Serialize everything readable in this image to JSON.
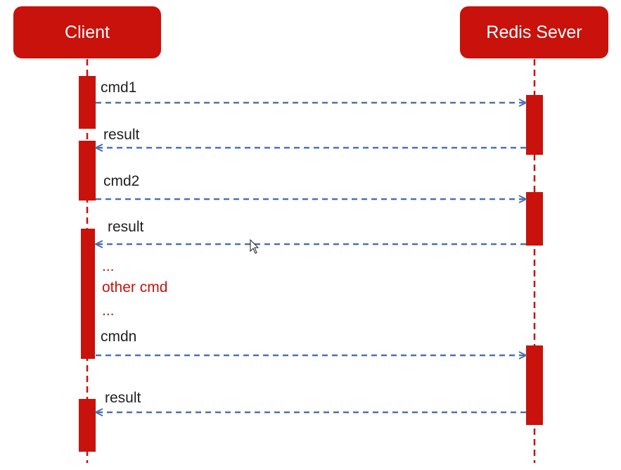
{
  "participants": {
    "client": "Client",
    "server": "Redis Sever"
  },
  "messages": [
    {
      "label": "cmd1",
      "direction": "request"
    },
    {
      "label": "result",
      "direction": "response"
    },
    {
      "label": "cmd2",
      "direction": "request"
    },
    {
      "label": "result",
      "direction": "response"
    },
    {
      "label": "cmdn",
      "direction": "request"
    },
    {
      "label": "result",
      "direction": "response"
    }
  ],
  "notes": {
    "ellipsis_top": "...",
    "other": "other cmd",
    "ellipsis_bottom": "..."
  },
  "colors": {
    "accent": "#c8120b",
    "arrow": "#4a72ae",
    "lifeline": "#c8120b"
  }
}
